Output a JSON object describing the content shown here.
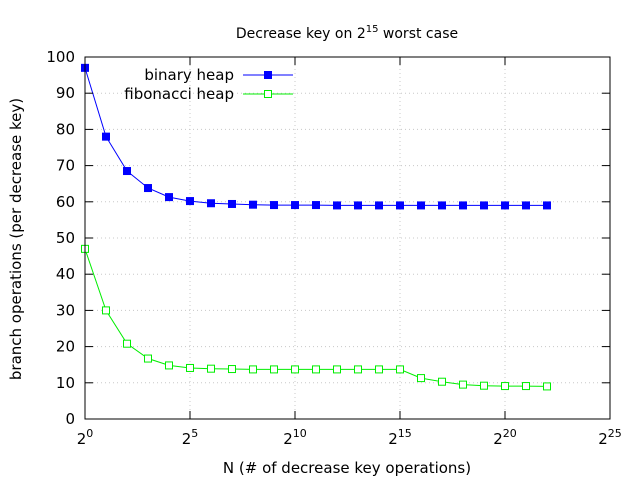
{
  "chart_data": {
    "type": "line",
    "title": {
      "text": "Decrease key on ",
      "base": "2",
      "exp": "15",
      "suffix": " worst case"
    },
    "xlabel": "N (# of decrease key operations)",
    "ylabel": "branch operations (per decrease key)",
    "x_scale": "log2",
    "xlim": [
      1,
      33554432
    ],
    "ylim": [
      0,
      100
    ],
    "x_ticks": [
      {
        "value": 1,
        "base": "2",
        "exp": "0"
      },
      {
        "value": 32,
        "base": "2",
        "exp": "5"
      },
      {
        "value": 1024,
        "base": "2",
        "exp": "10"
      },
      {
        "value": 32768,
        "base": "2",
        "exp": "15"
      },
      {
        "value": 1048576,
        "base": "2",
        "exp": "20"
      },
      {
        "value": 33554432,
        "base": "2",
        "exp": "25"
      }
    ],
    "y_ticks": [
      "0",
      "10",
      "20",
      "30",
      "40",
      "50",
      "60",
      "70",
      "80",
      "90",
      "100"
    ],
    "grid": true,
    "legend_position": "top-left",
    "x": [
      1,
      2,
      4,
      8,
      16,
      32,
      64,
      128,
      256,
      512,
      1024,
      2048,
      4096,
      8192,
      16384,
      32768,
      65536,
      131072,
      262144,
      524288,
      1048576,
      2097152,
      4194304
    ],
    "series": [
      {
        "name": "binary heap",
        "color": "#0000ff",
        "marker": "filled-square",
        "values": [
          97,
          78,
          68.5,
          63.8,
          61.3,
          60.2,
          59.6,
          59.4,
          59.2,
          59.1,
          59.1,
          59.1,
          59.0,
          59.0,
          59.0,
          59.0,
          59.0,
          59.0,
          59.0,
          59.0,
          59.0,
          59.0,
          59.0
        ]
      },
      {
        "name": "fibonacci heap",
        "color": "#00ee00",
        "marker": "open-square",
        "values": [
          47,
          30,
          20.8,
          16.7,
          14.8,
          14.1,
          13.9,
          13.8,
          13.7,
          13.7,
          13.7,
          13.7,
          13.7,
          13.7,
          13.7,
          13.7,
          11.3,
          10.3,
          9.5,
          9.2,
          9.1,
          9.1,
          9.0
        ]
      }
    ]
  }
}
